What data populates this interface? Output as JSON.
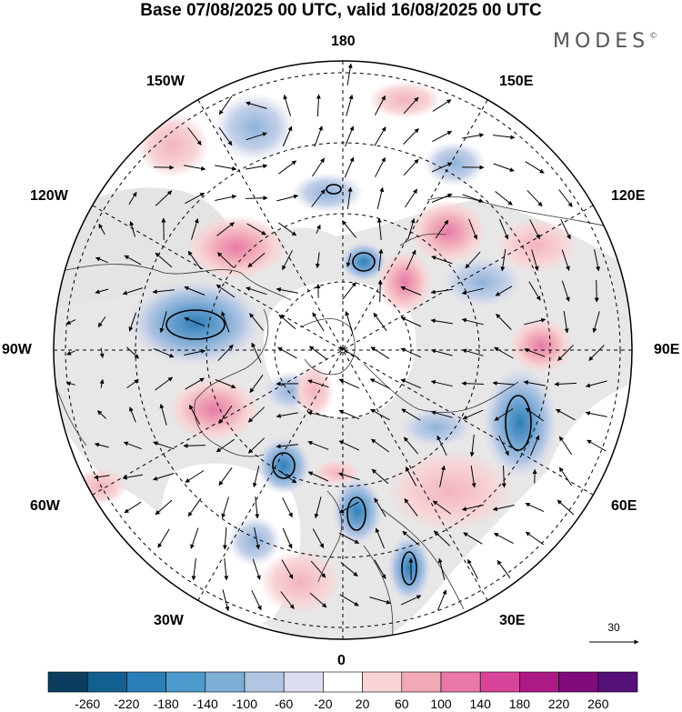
{
  "title": "Base 07/08/2025 00 UTC, valid 16/08/2025 00 UTC",
  "brand": {
    "name": "MODES",
    "mark": "©"
  },
  "meridian_labels": {
    "top": "180",
    "top_left": "150W",
    "top_right": "150E",
    "upper_left": "120W",
    "upper_right": "120E",
    "left": "90W",
    "right": "90E",
    "lower_left": "60W",
    "lower_right": "60E",
    "bottom_left": "30W",
    "bottom_right": "30E",
    "bottom": "0"
  },
  "reference_vector": {
    "value": "30"
  },
  "colorbar": {
    "levels": [
      "-260",
      "-220",
      "-180",
      "-140",
      "-100",
      "-60",
      "-20",
      "20",
      "60",
      "100",
      "140",
      "180",
      "220",
      "260"
    ],
    "colors": [
      "#0b3e5e",
      "#12608f",
      "#2a7fb8",
      "#4d9acc",
      "#7daed6",
      "#b2c6e3",
      "#dcddee",
      "#ffffff",
      "#f8d4d6",
      "#f1a9b8",
      "#ea79a7",
      "#d8449a",
      "#ad1a86",
      "#7f0c7a",
      "#561079"
    ]
  }
}
